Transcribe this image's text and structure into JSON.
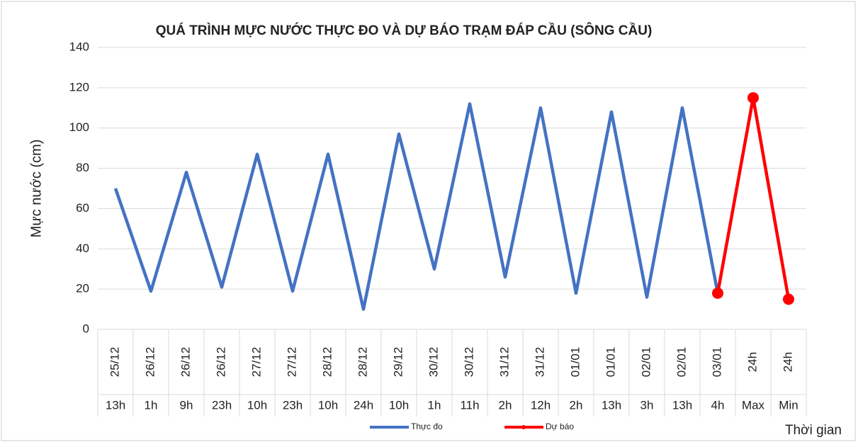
{
  "chart_data": {
    "type": "line",
    "title": "QUÁ TRÌNH MỰC NƯỚC THỰC ĐO VÀ DỰ BÁO TRẠM ĐÁP CẦU (SÔNG CẦU)",
    "y_label": "Mực nước (cm)",
    "x_label": "Thời gian",
    "categories": [
      "25/12",
      "26/12",
      "26/12",
      "26/12",
      "27/12",
      "27/12",
      "28/12",
      "28/12",
      "29/12",
      "30/12",
      "30/12",
      "31/12",
      "31/12",
      "01/01",
      "01/01",
      "02/01",
      "02/01",
      "03/01",
      "24h",
      "24h"
    ],
    "categories_outer": [
      "13h",
      "1h",
      "9h",
      "23h",
      "10h",
      "23h",
      "10h",
      "24h",
      "10h",
      "1h",
      "11h",
      "2h",
      "12h",
      "2h",
      "13h",
      "3h",
      "13h",
      "4h",
      "Max",
      "Min"
    ],
    "series": [
      {
        "name": "Thực đo",
        "color": "#4472c4",
        "values": [
          70,
          19,
          78,
          21,
          87,
          19,
          87,
          10,
          97,
          30,
          112,
          26,
          110,
          18,
          108,
          16,
          110,
          18,
          null,
          null
        ]
      },
      {
        "name": "Dự báo",
        "color": "#ff0000",
        "markers": true,
        "values": [
          null,
          null,
          null,
          null,
          null,
          null,
          null,
          null,
          null,
          null,
          null,
          null,
          null,
          null,
          null,
          null,
          null,
          18,
          115,
          15
        ]
      }
    ],
    "ylim": [
      0,
      140
    ],
    "yticks": [
      0,
      20,
      40,
      60,
      80,
      100,
      120,
      140
    ],
    "grid": true,
    "legend": "bottom"
  }
}
